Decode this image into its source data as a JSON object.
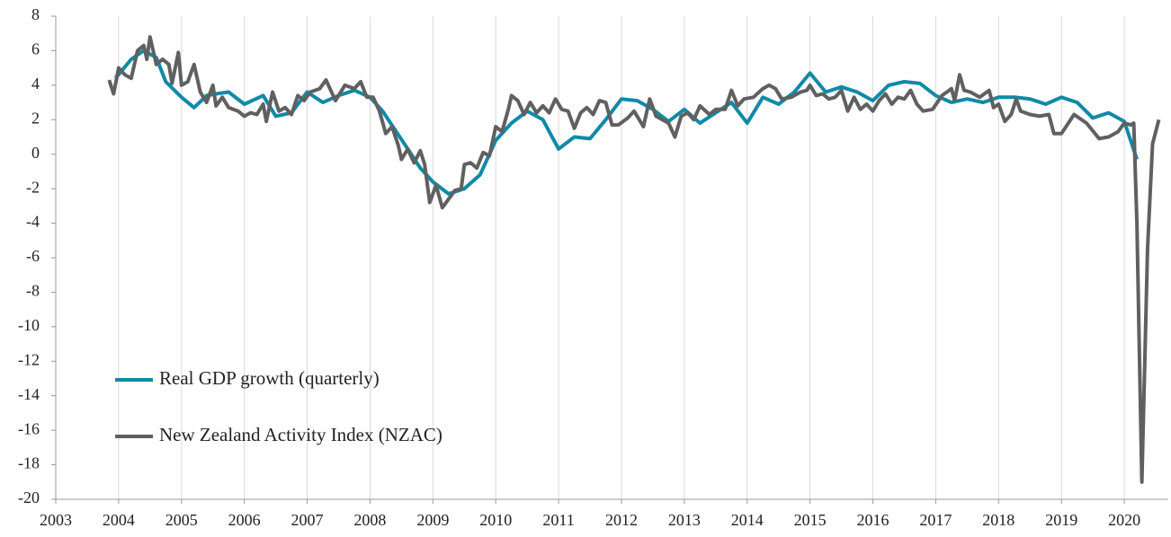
{
  "chart_data": {
    "type": "line",
    "xlim": [
      2003,
      2020.7
    ],
    "xticks": [
      2003,
      2004,
      2005,
      2006,
      2007,
      2008,
      2009,
      2010,
      2011,
      2012,
      2013,
      2014,
      2015,
      2016,
      2017,
      2018,
      2019,
      2020
    ],
    "ylim": [
      -20,
      8
    ],
    "yticks": [
      -20,
      -18,
      -16,
      -14,
      -12,
      -10,
      -8,
      -6,
      -4,
      -2,
      0,
      2,
      4,
      6,
      8
    ],
    "grid": "x",
    "legend": "lower left",
    "series": [
      {
        "name": "Real GDP growth (quarterly)",
        "color": "#0f8aa8",
        "x": [
          2003.95,
          2004.2,
          2004.4,
          2004.6,
          2004.75,
          2005.0,
          2005.2,
          2005.4,
          2005.55,
          2005.75,
          2006.0,
          2006.3,
          2006.5,
          2006.75,
          2007.0,
          2007.25,
          2007.5,
          2007.75,
          2008.0,
          2008.2,
          2008.4,
          2008.6,
          2008.8,
          2009.0,
          2009.25,
          2009.5,
          2009.75,
          2010.0,
          2010.25,
          2010.5,
          2010.75,
          2011.0,
          2011.25,
          2011.5,
          2011.75,
          2012.0,
          2012.25,
          2012.5,
          2012.75,
          2013.0,
          2013.25,
          2013.5,
          2013.75,
          2014.0,
          2014.25,
          2014.5,
          2014.75,
          2015.0,
          2015.25,
          2015.5,
          2015.75,
          2016.0,
          2016.25,
          2016.5,
          2016.75,
          2017.0,
          2017.25,
          2017.5,
          2017.75,
          2018.0,
          2018.25,
          2018.5,
          2018.75,
          2019.0,
          2019.25,
          2019.5,
          2019.75,
          2020.0,
          2020.2
        ],
        "values": [
          4.4,
          5.5,
          6.0,
          5.6,
          4.2,
          3.3,
          2.7,
          3.4,
          3.5,
          3.6,
          2.9,
          3.4,
          2.2,
          2.4,
          3.6,
          3.0,
          3.4,
          3.7,
          3.3,
          2.5,
          1.4,
          0.3,
          -0.8,
          -1.6,
          -2.3,
          -2.0,
          -1.2,
          0.8,
          1.8,
          2.5,
          2.0,
          0.3,
          1.0,
          0.9,
          2.0,
          3.2,
          3.1,
          2.6,
          1.9,
          2.6,
          1.8,
          2.4,
          3.0,
          1.8,
          3.3,
          2.9,
          3.6,
          4.7,
          3.6,
          3.9,
          3.6,
          3.1,
          4.0,
          4.2,
          4.1,
          3.4,
          3.0,
          3.2,
          3.0,
          3.3,
          3.3,
          3.2,
          2.9,
          3.3,
          3.0,
          2.1,
          2.4,
          1.9,
          -0.3
        ]
      },
      {
        "name": "New Zealand Activity Index (NZAC)",
        "color": "#606060",
        "x": [
          2003.85,
          2003.92,
          2004.0,
          2004.1,
          2004.2,
          2004.3,
          2004.4,
          2004.45,
          2004.5,
          2004.6,
          2004.7,
          2004.8,
          2004.85,
          2004.95,
          2005.0,
          2005.1,
          2005.2,
          2005.3,
          2005.4,
          2005.5,
          2005.55,
          2005.65,
          2005.75,
          2005.9,
          2006.0,
          2006.1,
          2006.2,
          2006.3,
          2006.35,
          2006.45,
          2006.55,
          2006.65,
          2006.75,
          2006.85,
          2006.95,
          2007.05,
          2007.2,
          2007.3,
          2007.45,
          2007.6,
          2007.75,
          2007.85,
          2007.95,
          2008.05,
          2008.15,
          2008.25,
          2008.35,
          2008.45,
          2008.5,
          2008.6,
          2008.7,
          2008.8,
          2008.87,
          2008.95,
          2009.05,
          2009.15,
          2009.25,
          2009.35,
          2009.45,
          2009.5,
          2009.6,
          2009.7,
          2009.8,
          2009.9,
          2010.0,
          2010.1,
          2010.2,
          2010.25,
          2010.35,
          2010.45,
          2010.55,
          2010.65,
          2010.75,
          2010.85,
          2010.95,
          2011.05,
          2011.15,
          2011.25,
          2011.35,
          2011.45,
          2011.55,
          2011.65,
          2011.75,
          2011.85,
          2011.95,
          2012.1,
          2012.2,
          2012.35,
          2012.45,
          2012.55,
          2012.65,
          2012.75,
          2012.85,
          2012.95,
          2013.05,
          2013.15,
          2013.25,
          2013.4,
          2013.5,
          2013.65,
          2013.75,
          2013.85,
          2013.95,
          2014.1,
          2014.25,
          2014.35,
          2014.45,
          2014.55,
          2014.7,
          2014.85,
          2014.95,
          2015.0,
          2015.1,
          2015.2,
          2015.3,
          2015.4,
          2015.5,
          2015.6,
          2015.7,
          2015.8,
          2015.9,
          2016.0,
          2016.1,
          2016.2,
          2016.3,
          2016.4,
          2016.5,
          2016.6,
          2016.7,
          2016.8,
          2016.95,
          2017.1,
          2017.25,
          2017.3,
          2017.38,
          2017.45,
          2017.55,
          2017.7,
          2017.85,
          2017.92,
          2018.0,
          2018.1,
          2018.2,
          2018.28,
          2018.35,
          2018.5,
          2018.65,
          2018.8,
          2018.88,
          2019.0,
          2019.2,
          2019.4,
          2019.6,
          2019.75,
          2019.9,
          2020.0,
          2020.1,
          2020.15,
          2020.2,
          2020.28,
          2020.37,
          2020.45,
          2020.55
        ],
        "values": [
          4.3,
          3.5,
          5.0,
          4.6,
          4.4,
          6.0,
          6.3,
          5.5,
          6.8,
          5.2,
          5.5,
          5.2,
          4.1,
          5.9,
          4.0,
          4.2,
          5.2,
          3.6,
          3.0,
          4.0,
          2.8,
          3.3,
          2.7,
          2.5,
          2.2,
          2.4,
          2.3,
          2.9,
          1.9,
          3.6,
          2.5,
          2.7,
          2.3,
          3.4,
          3.1,
          3.6,
          3.8,
          4.3,
          3.1,
          4.0,
          3.8,
          4.2,
          3.3,
          3.3,
          2.5,
          1.2,
          1.6,
          0.5,
          -0.3,
          0.3,
          -0.5,
          0.2,
          -0.6,
          -2.8,
          -1.8,
          -3.1,
          -2.6,
          -2.1,
          -2.0,
          -0.6,
          -0.5,
          -0.8,
          0.1,
          -0.1,
          1.6,
          1.3,
          2.6,
          3.4,
          3.1,
          2.3,
          3.0,
          2.4,
          2.8,
          2.4,
          3.2,
          2.6,
          2.5,
          1.5,
          2.4,
          2.7,
          2.3,
          3.1,
          3.0,
          1.7,
          1.7,
          2.1,
          2.5,
          1.6,
          3.2,
          2.2,
          2.0,
          1.8,
          1.0,
          2.2,
          2.4,
          2.0,
          2.8,
          2.3,
          2.6,
          2.6,
          3.7,
          2.8,
          3.2,
          3.3,
          3.8,
          4.0,
          3.8,
          3.2,
          3.3,
          3.6,
          3.7,
          4.0,
          3.4,
          3.5,
          3.2,
          3.3,
          3.7,
          2.5,
          3.3,
          2.6,
          2.9,
          2.5,
          3.1,
          3.5,
          2.9,
          3.3,
          3.2,
          3.7,
          2.9,
          2.5,
          2.6,
          3.4,
          3.8,
          3.1,
          4.6,
          3.7,
          3.6,
          3.3,
          3.7,
          2.7,
          2.9,
          1.9,
          2.3,
          3.2,
          2.5,
          2.3,
          2.2,
          2.3,
          1.2,
          1.2,
          2.3,
          1.8,
          0.9,
          1.0,
          1.3,
          1.8,
          1.7,
          1.8,
          -4.0,
          -19.0,
          -5.5,
          0.6,
          2.0
        ]
      }
    ]
  }
}
